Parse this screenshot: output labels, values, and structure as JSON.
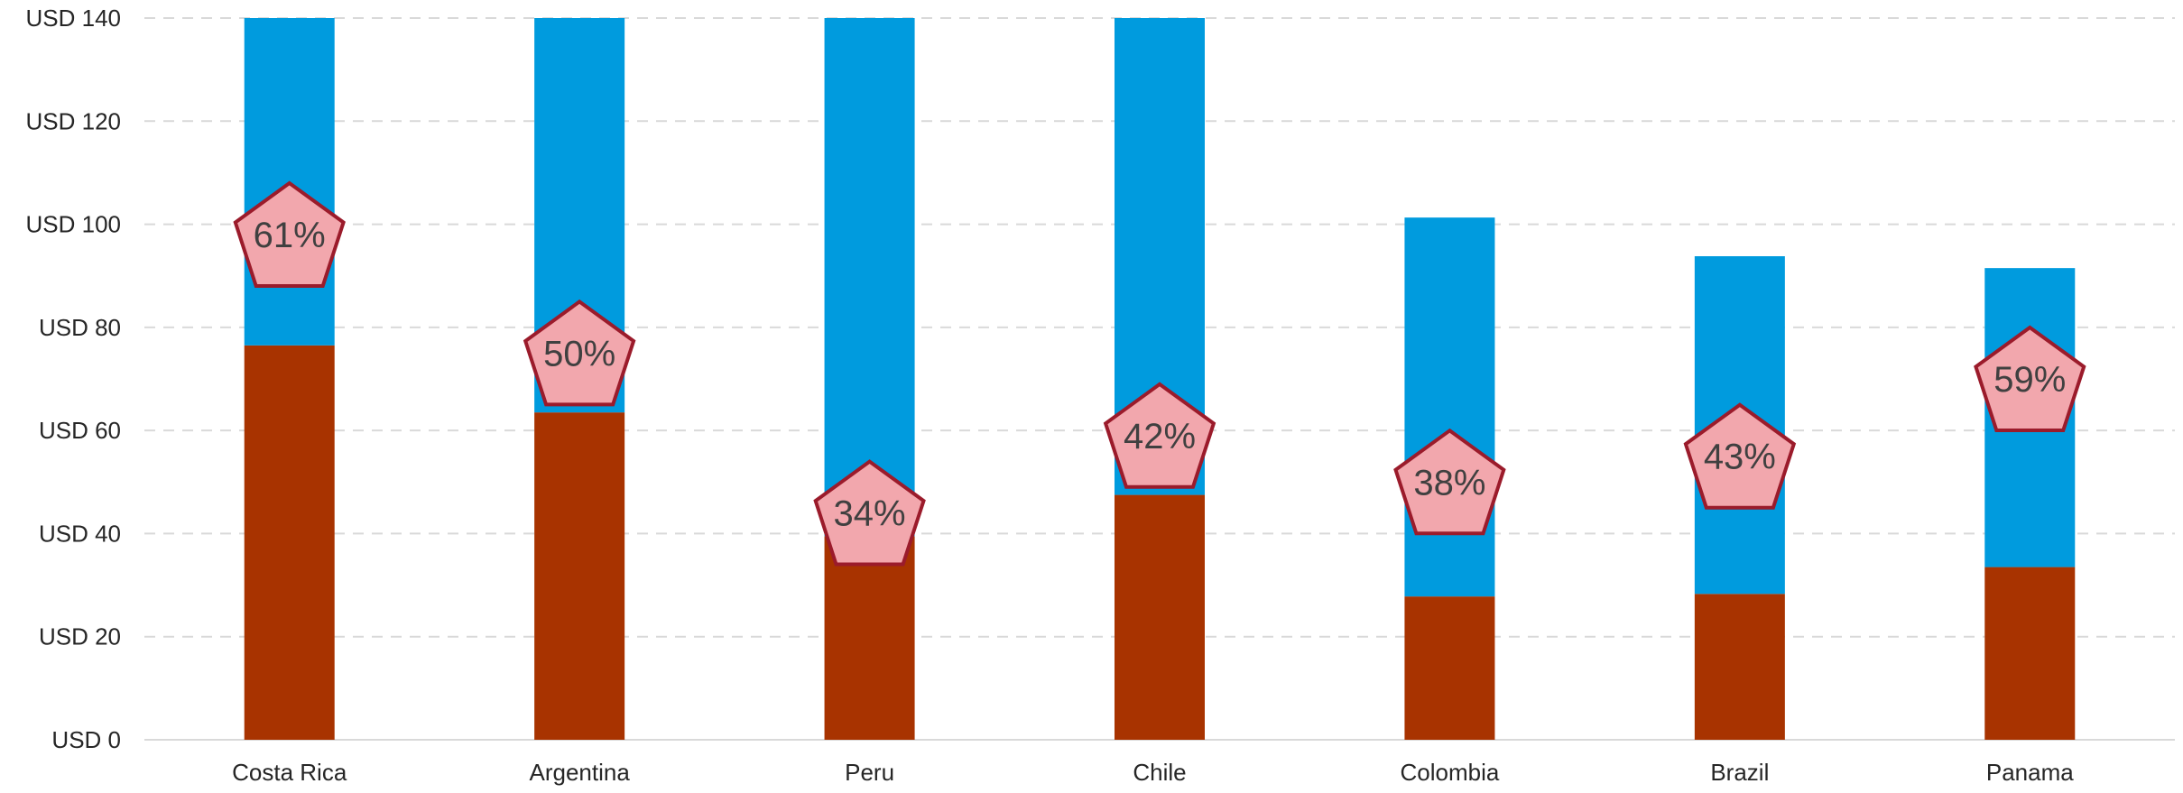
{
  "chart_data": {
    "type": "bar",
    "stacked": true,
    "categories": [
      "Costa Rica",
      "Argentina",
      "Peru",
      "Chile",
      "Colombia",
      "Brazil",
      "Panama"
    ],
    "series": [
      {
        "values": [
          76.5,
          63.5,
          39.5,
          47.5,
          27.8,
          28.3,
          33.5
        ],
        "color": "#a83300"
      },
      {
        "values": [
          63.5,
          76.5,
          100.5,
          92.5,
          73.5,
          65.5,
          58.0
        ],
        "color": "#009bde"
      }
    ],
    "labels": [
      "61%",
      "50%",
      "34%",
      "42%",
      "38%",
      "43%",
      "59%"
    ],
    "label_y": [
      98,
      75,
      44,
      59,
      50,
      55,
      70
    ],
    "marker": {
      "shape": "pentagon",
      "fill": "#f2a7ad",
      "stroke": "#9b1b2b"
    },
    "y_ticks": [
      "USD 0",
      "USD 20",
      "USD 40",
      "USD 60",
      "USD 80",
      "USD 100",
      "USD 120",
      "USD 140"
    ],
    "ylim": [
      0,
      140
    ],
    "grid": true,
    "legend": "none"
  }
}
